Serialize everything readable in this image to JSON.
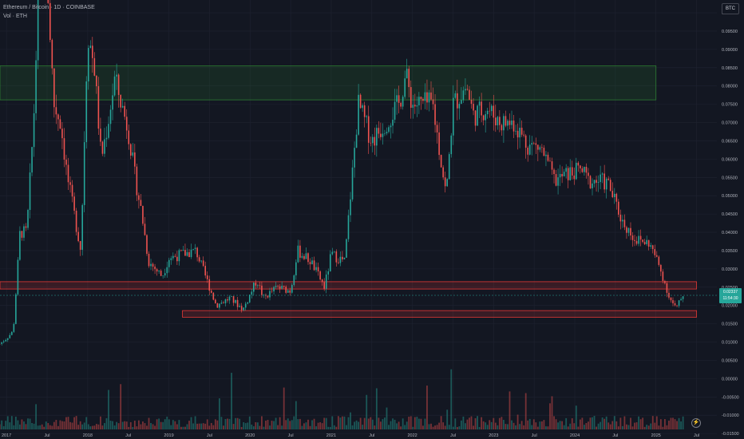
{
  "header": {
    "title": "Ethereum / Bitcoin · 1D · COINBASE",
    "volume_label": "Vol · ETH"
  },
  "currency_button": "BTC",
  "last_price": {
    "value": "0.02337",
    "countdown": "11:54:30",
    "color": "#26a69a"
  },
  "colors": {
    "background": "#131722",
    "up": "#26a69a",
    "down": "#ef5350",
    "grid": "#1f2331",
    "zone_green": "#2e7d32",
    "zone_red": "#e53935"
  },
  "chart_data": {
    "type": "candlestick",
    "title": "Ethereum / Bitcoin · 1D · COINBASE",
    "x_ticks": [
      "2017",
      "Jul",
      "2018",
      "Jul",
      "2019",
      "Jul",
      "2020",
      "Jul",
      "2021",
      "Jul",
      "2022",
      "Jul",
      "2023",
      "Jul",
      "2024",
      "Jul",
      "2025",
      "Jul"
    ],
    "y_ticks": [
      "0.10000",
      "0.09500",
      "0.09000",
      "0.08500",
      "0.08000",
      "0.07500",
      "0.07000",
      "0.06500",
      "0.06000",
      "0.05500",
      "0.05000",
      "0.04500",
      "0.04000",
      "0.03500",
      "0.03000",
      "0.02500",
      "0.02000",
      "0.01500",
      "0.01000",
      "0.00500",
      "0.00000",
      "-0.00500",
      "-0.01000",
      "-0.01500"
    ],
    "ylim": [
      -0.0165,
      0.1035
    ],
    "price_path": [
      [
        "2016-12",
        0.0095
      ],
      [
        "2017-01",
        0.011
      ],
      [
        "2017-02",
        0.013
      ],
      [
        "2017-03",
        0.04
      ],
      [
        "2017-04",
        0.04
      ],
      [
        "2017-05",
        0.07
      ],
      [
        "2017-06",
        0.12
      ],
      [
        "2017-07",
        0.11
      ],
      [
        "2017-08",
        0.075
      ],
      [
        "2017-09",
        0.07
      ],
      [
        "2017-10",
        0.055
      ],
      [
        "2017-11",
        0.045
      ],
      [
        "2017-12",
        0.035
      ],
      [
        "2018-01",
        0.095
      ],
      [
        "2018-02",
        0.085
      ],
      [
        "2018-03",
        0.06
      ],
      [
        "2018-04",
        0.07
      ],
      [
        "2018-05",
        0.082
      ],
      [
        "2018-06",
        0.075
      ],
      [
        "2018-07",
        0.068
      ],
      [
        "2018-08",
        0.055
      ],
      [
        "2018-09",
        0.045
      ],
      [
        "2018-10",
        0.032
      ],
      [
        "2018-11",
        0.03
      ],
      [
        "2018-12",
        0.028
      ],
      [
        "2019-01",
        0.033
      ],
      [
        "2019-03",
        0.034
      ],
      [
        "2019-05",
        0.035
      ],
      [
        "2019-06",
        0.03
      ],
      [
        "2019-08",
        0.02
      ],
      [
        "2019-10",
        0.022
      ],
      [
        "2019-12",
        0.019
      ],
      [
        "2020-02",
        0.027
      ],
      [
        "2020-03",
        0.022
      ],
      [
        "2020-05",
        0.025
      ],
      [
        "2020-07",
        0.024
      ],
      [
        "2020-08",
        0.035
      ],
      [
        "2020-10",
        0.032
      ],
      [
        "2020-12",
        0.025
      ],
      [
        "2021-01",
        0.034
      ],
      [
        "2021-03",
        0.032
      ],
      [
        "2021-05",
        0.075
      ],
      [
        "2021-07",
        0.065
      ],
      [
        "2021-09",
        0.07
      ],
      [
        "2021-11",
        0.075
      ],
      [
        "2021-12",
        0.083
      ],
      [
        "2022-01",
        0.075
      ],
      [
        "2022-04",
        0.075
      ],
      [
        "2022-06",
        0.05
      ],
      [
        "2022-07",
        0.075
      ],
      [
        "2022-09",
        0.08
      ],
      [
        "2022-10",
        0.072
      ],
      [
        "2022-12",
        0.074
      ],
      [
        "2023-02",
        0.07
      ],
      [
        "2023-04",
        0.07
      ],
      [
        "2023-06",
        0.064
      ],
      [
        "2023-08",
        0.063
      ],
      [
        "2023-10",
        0.054
      ],
      [
        "2023-12",
        0.056
      ],
      [
        "2024-02",
        0.057
      ],
      [
        "2024-03",
        0.054
      ],
      [
        "2024-05",
        0.054
      ],
      [
        "2024-06",
        0.053
      ],
      [
        "2024-08",
        0.043
      ],
      [
        "2024-10",
        0.038
      ],
      [
        "2024-12",
        0.037
      ],
      [
        "2025-01",
        0.033
      ],
      [
        "2025-02",
        0.028
      ],
      [
        "2025-03",
        0.022
      ],
      [
        "2025-04",
        0.019
      ],
      [
        "2025-05",
        0.023
      ]
    ],
    "zones": [
      {
        "top": 0.0855,
        "bottom": 0.0762,
        "color": "#2e7d32",
        "x_end": "2025-01"
      },
      {
        "top": 0.0265,
        "bottom": 0.0245,
        "color": "#e53935",
        "x_end": "2025-07"
      },
      {
        "top": 0.0186,
        "bottom": 0.0168,
        "color": "#e53935",
        "x_start": "2019-03",
        "x_end": "2025-07"
      }
    ],
    "last_value": 0.02337
  }
}
